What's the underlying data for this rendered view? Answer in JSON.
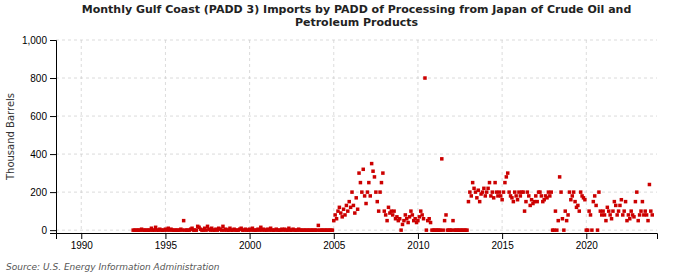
{
  "chart_data": {
    "type": "scatter",
    "title": "Monthly Gulf Coast (PADD 3) Imports by PADD of Processing from Japan of Crude Oil and\nPetroleum Products",
    "ylabel": "Thousand Barrels",
    "source": "Source: U.S. Energy Information Administration",
    "color": "#cc0000",
    "marker": "square",
    "grid": true,
    "xlim": [
      1988.5,
      2024.2
    ],
    "ylim": [
      -15,
      1000
    ],
    "xticks": [
      1990,
      1995,
      2000,
      2005,
      2010,
      2015,
      2020
    ],
    "yticks": [
      0,
      200,
      400,
      600,
      800,
      {
        "value": 1000,
        "label": "1,000"
      }
    ],
    "x": [
      1993.083,
      1993.167,
      1993.25,
      1993.333,
      1993.417,
      1993.5,
      1993.583,
      1993.667,
      1993.75,
      1993.833,
      1993.917,
      1994.0,
      1994.083,
      1994.167,
      1994.25,
      1994.333,
      1994.417,
      1994.5,
      1994.583,
      1994.667,
      1994.75,
      1994.833,
      1994.917,
      1995.0,
      1995.083,
      1995.167,
      1995.25,
      1995.333,
      1995.417,
      1995.5,
      1995.583,
      1995.667,
      1995.75,
      1995.833,
      1995.917,
      1996.0,
      1996.083,
      1996.167,
      1996.25,
      1996.333,
      1996.417,
      1996.5,
      1996.583,
      1996.667,
      1996.75,
      1996.833,
      1996.917,
      1997.0,
      1997.083,
      1997.167,
      1997.25,
      1997.333,
      1997.417,
      1997.5,
      1997.583,
      1997.667,
      1997.75,
      1997.833,
      1997.917,
      1998.0,
      1998.083,
      1998.167,
      1998.25,
      1998.333,
      1998.417,
      1998.5,
      1998.583,
      1998.667,
      1998.75,
      1998.833,
      1998.917,
      1999.0,
      1999.083,
      1999.167,
      1999.25,
      1999.333,
      1999.417,
      1999.5,
      1999.583,
      1999.667,
      1999.75,
      1999.833,
      1999.917,
      2000.0,
      2000.083,
      2000.167,
      2000.25,
      2000.333,
      2000.417,
      2000.5,
      2000.583,
      2000.667,
      2000.75,
      2000.833,
      2000.917,
      2001.0,
      2001.083,
      2001.167,
      2001.25,
      2001.333,
      2001.417,
      2001.5,
      2001.583,
      2001.667,
      2001.75,
      2001.833,
      2001.917,
      2002.0,
      2002.083,
      2002.167,
      2002.25,
      2002.333,
      2002.417,
      2002.5,
      2002.583,
      2002.667,
      2002.75,
      2002.833,
      2002.917,
      2003.0,
      2003.083,
      2003.167,
      2003.25,
      2003.333,
      2003.417,
      2003.5,
      2003.583,
      2003.667,
      2003.75,
      2003.833,
      2003.917,
      2004.0,
      2004.083,
      2004.167,
      2004.25,
      2004.333,
      2004.417,
      2004.5,
      2004.583,
      2004.667,
      2004.75,
      2004.833,
      2004.917,
      2005.0,
      2005.083,
      2005.167,
      2005.25,
      2005.333,
      2005.417,
      2005.5,
      2005.583,
      2005.667,
      2005.75,
      2005.833,
      2005.917,
      2006.0,
      2006.083,
      2006.167,
      2006.25,
      2006.333,
      2006.417,
      2006.5,
      2006.583,
      2006.667,
      2006.75,
      2006.833,
      2006.917,
      2007.0,
      2007.083,
      2007.167,
      2007.25,
      2007.333,
      2007.417,
      2007.5,
      2007.583,
      2007.667,
      2007.75,
      2007.833,
      2007.917,
      2008.0,
      2008.083,
      2008.167,
      2008.25,
      2008.333,
      2008.417,
      2008.5,
      2008.583,
      2008.667,
      2008.75,
      2008.833,
      2008.917,
      2009.0,
      2009.083,
      2009.167,
      2009.25,
      2009.333,
      2009.417,
      2009.5,
      2009.583,
      2009.667,
      2009.75,
      2009.833,
      2009.917,
      2010.0,
      2010.083,
      2010.167,
      2010.25,
      2010.333,
      2010.417,
      2010.5,
      2010.583,
      2010.667,
      2010.75,
      2010.833,
      2010.917,
      2011.0,
      2011.083,
      2011.167,
      2011.25,
      2011.333,
      2011.417,
      2011.5,
      2011.583,
      2011.667,
      2011.75,
      2011.833,
      2011.917,
      2012.0,
      2012.083,
      2012.167,
      2012.25,
      2012.333,
      2012.417,
      2012.5,
      2012.583,
      2012.667,
      2012.75,
      2012.833,
      2012.917,
      2013.0,
      2013.083,
      2013.167,
      2013.25,
      2013.333,
      2013.417,
      2013.5,
      2013.583,
      2013.667,
      2013.75,
      2013.833,
      2013.917,
      2014.0,
      2014.083,
      2014.167,
      2014.25,
      2014.333,
      2014.417,
      2014.5,
      2014.583,
      2014.667,
      2014.75,
      2014.833,
      2014.917,
      2015.0,
      2015.083,
      2015.167,
      2015.25,
      2015.333,
      2015.417,
      2015.5,
      2015.583,
      2015.667,
      2015.75,
      2015.833,
      2015.917,
      2016.0,
      2016.083,
      2016.167,
      2016.25,
      2016.333,
      2016.417,
      2016.5,
      2016.583,
      2016.667,
      2016.75,
      2016.833,
      2016.917,
      2017.0,
      2017.083,
      2017.167,
      2017.25,
      2017.333,
      2017.417,
      2017.5,
      2017.583,
      2017.667,
      2017.75,
      2017.833,
      2017.917,
      2018.0,
      2018.083,
      2018.167,
      2018.25,
      2018.333,
      2018.417,
      2018.5,
      2018.583,
      2018.667,
      2018.75,
      2018.833,
      2018.917,
      2019.0,
      2019.083,
      2019.167,
      2019.25,
      2019.333,
      2019.417,
      2019.5,
      2019.583,
      2019.667,
      2019.75,
      2019.833,
      2019.917,
      2020.0,
      2020.083,
      2020.167,
      2020.25,
      2020.333,
      2020.417,
      2020.5,
      2020.583,
      2020.667,
      2020.75,
      2020.833,
      2020.917,
      2021.0,
      2021.083,
      2021.167,
      2021.25,
      2021.333,
      2021.417,
      2021.5,
      2021.583,
      2021.667,
      2021.75,
      2021.833,
      2021.917,
      2022.0,
      2022.083,
      2022.167,
      2022.25,
      2022.333,
      2022.417,
      2022.5,
      2022.583,
      2022.667,
      2022.75,
      2022.833,
      2022.917,
      2023.0,
      2023.083,
      2023.167,
      2023.25,
      2023.333,
      2023.417,
      2023.5,
      2023.583,
      2023.667,
      2023.75,
      2023.833,
      2023.917
    ],
    "values": [
      0,
      0,
      0,
      0,
      0,
      0,
      5,
      0,
      0,
      0,
      0,
      0,
      0,
      10,
      0,
      0,
      15,
      0,
      0,
      5,
      0,
      0,
      0,
      5,
      0,
      10,
      0,
      5,
      0,
      0,
      0,
      0,
      0,
      0,
      5,
      0,
      50,
      0,
      0,
      0,
      0,
      5,
      10,
      0,
      0,
      0,
      20,
      15,
      5,
      0,
      0,
      10,
      0,
      20,
      5,
      0,
      10,
      0,
      0,
      5,
      0,
      10,
      5,
      0,
      20,
      0,
      5,
      0,
      0,
      10,
      0,
      0,
      5,
      0,
      0,
      0,
      5,
      10,
      0,
      0,
      5,
      0,
      0,
      5,
      0,
      10,
      0,
      0,
      0,
      5,
      0,
      15,
      0,
      5,
      0,
      0,
      5,
      0,
      10,
      0,
      0,
      0,
      5,
      0,
      0,
      0,
      5,
      0,
      5,
      0,
      0,
      10,
      0,
      0,
      5,
      0,
      0,
      0,
      5,
      0,
      0,
      0,
      0,
      0,
      0,
      0,
      0,
      0,
      0,
      0,
      0,
      0,
      25,
      0,
      0,
      0,
      0,
      0,
      0,
      0,
      0,
      0,
      0,
      50,
      80,
      60,
      100,
      120,
      90,
      70,
      110,
      80,
      130,
      100,
      150,
      120,
      200,
      130,
      90,
      170,
      110,
      300,
      250,
      200,
      320,
      180,
      140,
      200,
      250,
      180,
      350,
      310,
      280,
      200,
      150,
      100,
      200,
      250,
      300,
      100,
      80,
      50,
      120,
      90,
      100,
      80,
      100,
      60,
      70,
      50,
      60,
      0,
      30,
      50,
      80,
      60,
      40,
      70,
      100,
      80,
      50,
      60,
      40,
      50,
      70,
      100,
      80,
      60,
      800,
      0,
      50,
      60,
      40,
      0,
      0,
      0,
      0,
      0,
      0,
      0,
      375,
      0,
      50,
      80,
      0,
      0,
      0,
      0,
      50,
      0,
      0,
      0,
      0,
      0,
      0,
      0,
      0,
      0,
      0,
      150,
      200,
      180,
      250,
      220,
      200,
      170,
      210,
      150,
      190,
      200,
      220,
      180,
      200,
      220,
      250,
      180,
      200,
      170,
      250,
      200,
      180,
      200,
      180,
      160,
      200,
      250,
      280,
      300,
      200,
      180,
      170,
      150,
      200,
      180,
      160,
      200,
      180,
      200,
      200,
      100,
      150,
      200,
      180,
      130,
      160,
      140,
      150,
      180,
      150,
      200,
      200,
      180,
      150,
      160,
      180,
      170,
      200,
      180,
      200,
      0,
      0,
      100,
      0,
      50,
      280,
      200,
      60,
      0,
      100,
      50,
      80,
      200,
      160,
      180,
      200,
      150,
      120,
      130,
      100,
      200,
      180,
      170,
      160,
      0,
      0,
      100,
      80,
      0,
      150,
      180,
      130,
      0,
      200,
      100,
      80,
      100,
      80,
      50,
      120,
      100,
      80,
      60,
      100,
      150,
      130,
      80,
      100,
      130,
      160,
      80,
      100,
      150,
      50,
      80,
      60,
      100,
      80,
      70,
      150,
      200,
      50,
      80,
      100,
      150,
      80,
      100,
      80,
      50,
      240,
      100,
      80
    ]
  }
}
